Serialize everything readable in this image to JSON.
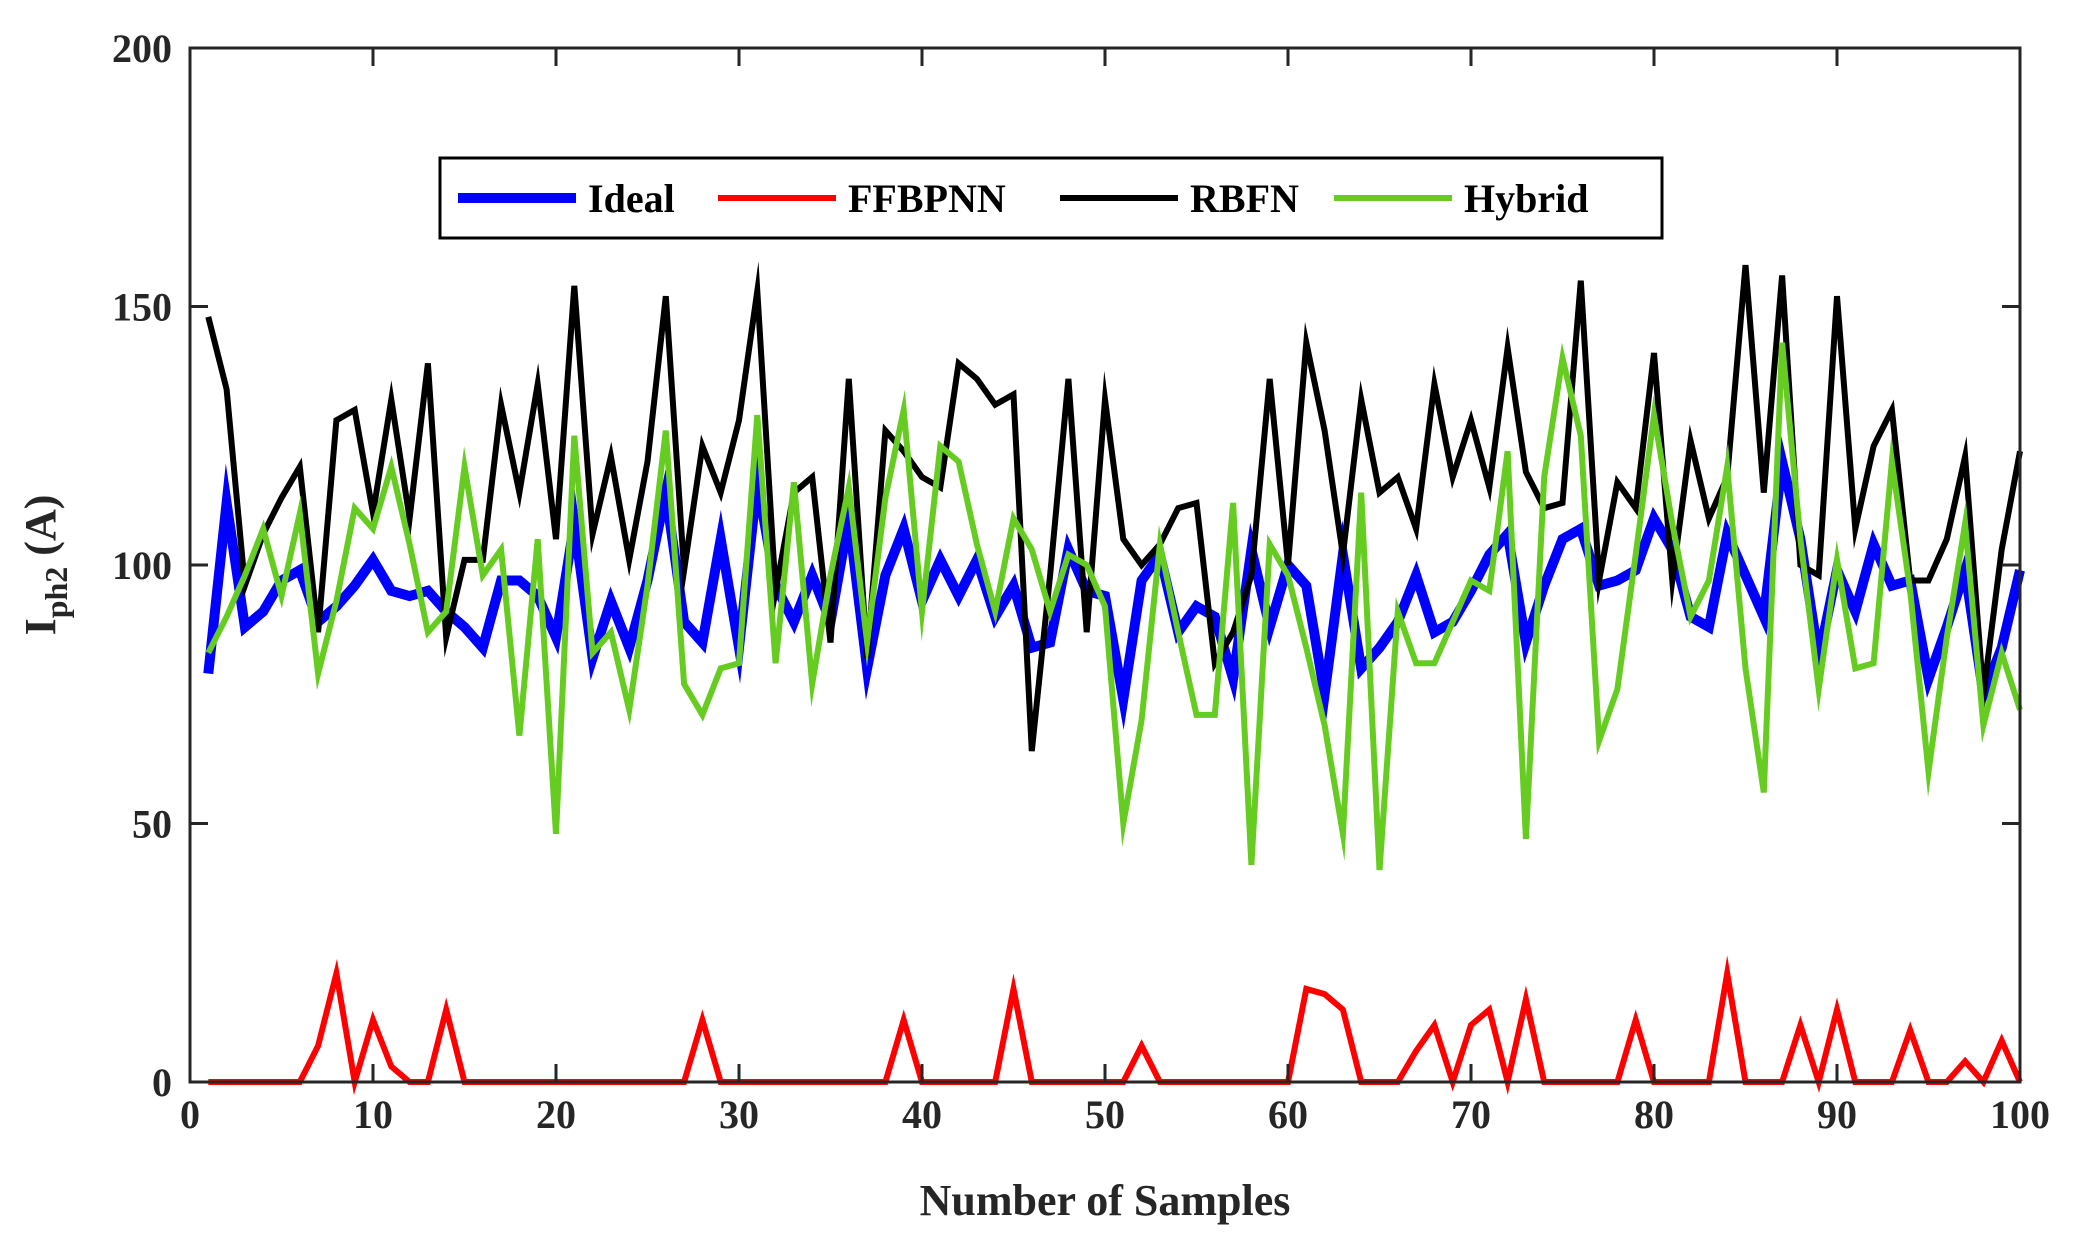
{
  "chart_data": {
    "type": "line",
    "title": "",
    "xlabel": "Number of Samples",
    "ylabel_main": "I",
    "ylabel_sub": "ph2",
    "ylabel_unit": "(A)",
    "xlim": [
      0,
      100
    ],
    "ylim": [
      0,
      200
    ],
    "xticks": [
      0,
      10,
      20,
      30,
      40,
      50,
      60,
      70,
      80,
      90,
      100
    ],
    "yticks": [
      0,
      50,
      100,
      150,
      200
    ],
    "grid": false,
    "legend_position": "top",
    "x": [
      1,
      2,
      3,
      4,
      5,
      6,
      7,
      8,
      9,
      10,
      11,
      12,
      13,
      14,
      15,
      16,
      17,
      18,
      19,
      20,
      21,
      22,
      23,
      24,
      25,
      26,
      27,
      28,
      29,
      30,
      31,
      32,
      33,
      34,
      35,
      36,
      37,
      38,
      39,
      40,
      41,
      42,
      43,
      44,
      45,
      46,
      47,
      48,
      49,
      50,
      51,
      52,
      53,
      54,
      55,
      56,
      57,
      58,
      59,
      60,
      61,
      62,
      63,
      64,
      65,
      66,
      67,
      68,
      69,
      70,
      71,
      72,
      73,
      74,
      75,
      76,
      77,
      78,
      79,
      80,
      81,
      82,
      83,
      84,
      85,
      86,
      87,
      88,
      89,
      90,
      91,
      92,
      93,
      94,
      95,
      96,
      97,
      98,
      99,
      100
    ],
    "series": [
      {
        "name": "Ideal",
        "color": "#0000ff",
        "values": [
          79,
          112,
          88,
          91,
          97,
          99,
          89,
          92,
          96,
          101,
          95,
          94,
          95,
          91,
          88,
          84,
          97,
          97,
          94,
          86,
          108,
          82,
          93,
          84,
          97,
          114,
          89,
          85,
          105,
          84,
          116,
          96,
          89,
          98,
          89,
          109,
          80,
          98,
          107,
          93,
          101,
          94,
          101,
          90,
          96,
          84,
          85,
          103,
          95,
          94,
          74,
          97,
          102,
          87,
          92,
          90,
          78,
          103,
          88,
          100,
          96,
          75,
          102,
          80,
          84,
          89,
          98,
          87,
          89,
          95,
          102,
          106,
          85,
          96,
          105,
          107,
          96,
          97,
          99,
          109,
          103,
          90,
          88,
          106,
          98,
          90,
          120,
          105,
          82,
          99,
          91,
          104,
          96,
          97,
          78,
          88,
          99,
          75,
          84,
          99
        ]
      },
      {
        "name": "FFBPNN",
        "color": "#ff0000",
        "values": [
          0,
          0,
          0,
          0,
          0,
          0,
          7,
          21,
          0,
          12,
          3,
          0,
          0,
          14,
          0,
          0,
          0,
          0,
          0,
          0,
          0,
          0,
          0,
          0,
          0,
          0,
          0,
          12,
          0,
          0,
          0,
          0,
          0,
          0,
          0,
          0,
          0,
          0,
          12,
          0,
          0,
          0,
          0,
          0,
          18,
          0,
          0,
          0,
          0,
          0,
          0,
          7,
          0,
          0,
          0,
          0,
          0,
          0,
          0,
          0,
          18,
          17,
          14,
          0,
          0,
          0,
          6,
          11,
          0,
          11,
          14,
          0,
          16,
          0,
          0,
          0,
          0,
          0,
          12,
          0,
          0,
          0,
          0,
          21,
          0,
          0,
          0,
          11,
          0,
          14,
          0,
          0,
          0,
          10,
          0,
          0,
          4,
          0,
          8,
          0
        ]
      },
      {
        "name": "RBFN",
        "color": "#000000",
        "values": [
          148,
          134,
          96,
          106,
          113,
          119,
          87,
          128,
          130,
          110,
          132,
          109,
          139,
          86,
          101,
          101,
          131,
          114,
          135,
          105,
          154,
          106,
          121,
          101,
          120,
          152,
          99,
          123,
          114,
          128,
          153,
          95,
          114,
          117,
          85,
          136,
          82,
          126,
          122,
          117,
          115,
          139,
          136,
          131,
          133,
          64,
          98,
          136,
          87,
          132,
          105,
          100,
          104,
          111,
          112,
          81,
          87,
          98,
          136,
          100,
          143,
          126,
          102,
          132,
          114,
          117,
          107,
          135,
          117,
          128,
          115,
          142,
          118,
          111,
          112,
          155,
          97,
          116,
          111,
          141,
          97,
          124,
          109,
          117,
          158,
          114,
          156,
          100,
          98,
          152,
          107,
          123,
          130,
          97,
          97,
          105,
          121,
          75,
          103,
          122
        ]
      },
      {
        "name": "Hybrid",
        "color": "#66cc22",
        "values": [
          83,
          90,
          98,
          107,
          94,
          110,
          79,
          93,
          111,
          107,
          119,
          104,
          87,
          91,
          119,
          98,
          103,
          67,
          105,
          48,
          125,
          83,
          87,
          72,
          96,
          126,
          77,
          71,
          80,
          81,
          129,
          81,
          116,
          77,
          98,
          115,
          85,
          113,
          130,
          91,
          123,
          120,
          104,
          91,
          109,
          103,
          91,
          102,
          100,
          92,
          50,
          70,
          104,
          87,
          71,
          71,
          112,
          42,
          104,
          98,
          84,
          69,
          48,
          114,
          41,
          91,
          81,
          81,
          89,
          97,
          95,
          122,
          47,
          117,
          140,
          125,
          66,
          76,
          102,
          129,
          108,
          90,
          97,
          119,
          80,
          56,
          143,
          105,
          76,
          101,
          80,
          81,
          120,
          95,
          60,
          86,
          108,
          69,
          83,
          72
        ]
      }
    ]
  }
}
